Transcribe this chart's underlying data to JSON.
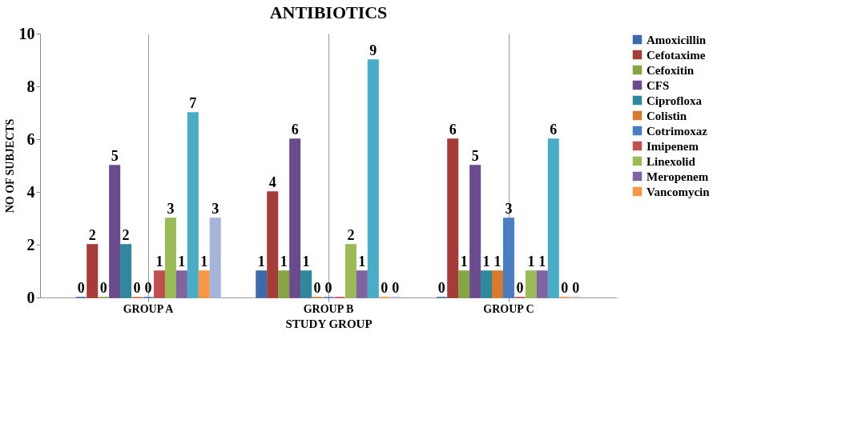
{
  "chart_data": {
    "type": "bar",
    "title": "ANTIBIOTICS",
    "xlabel": "STUDY GROUP",
    "ylabel": "NO OF SUBJECTS",
    "categories": [
      "GROUP A",
      "GROUP B",
      "GROUP C"
    ],
    "ylim": [
      0,
      10
    ],
    "yticks": [
      0,
      2,
      4,
      6,
      8,
      10
    ],
    "legend": "top right",
    "grid": "x",
    "data_labels": true,
    "series": [
      {
        "name": "Amoxicillin",
        "color": "#3d6aa8",
        "values": [
          0,
          1,
          0
        ]
      },
      {
        "name": "Cefotaxime",
        "color": "#a63c3a",
        "values": [
          2,
          4,
          6
        ]
      },
      {
        "name": "Cefoxitin",
        "color": "#86a443",
        "values": [
          0,
          1,
          1
        ]
      },
      {
        "name": "CFS",
        "color": "#6a4c8c",
        "values": [
          5,
          6,
          5
        ]
      },
      {
        "name": "Ciprofloxa",
        "color": "#31879c",
        "values": [
          2,
          1,
          1
        ]
      },
      {
        "name": "Colistin",
        "color": "#d57a2e",
        "values": [
          0,
          0,
          1
        ]
      },
      {
        "name": "Cotrimoxaz",
        "color": "#4a7ec0",
        "values": [
          0,
          0,
          3
        ]
      },
      {
        "name": "Imipenem",
        "color": "#c0504d",
        "values": [
          1,
          0,
          0
        ],
        "value_labels": [
          "1",
          null,
          "0"
        ]
      },
      {
        "name": "Linexolid",
        "color": "#9bbb59",
        "values": [
          3,
          2,
          1
        ]
      },
      {
        "name": "Meropenem",
        "color": "#8064a2",
        "values": [
          1,
          1,
          1
        ]
      },
      {
        "color": "#4bacc6",
        "values": [
          7,
          9,
          6
        ]
      },
      {
        "name": "Vancomycin",
        "color": "#f79646",
        "values": [
          1,
          0,
          0
        ]
      },
      {
        "color": "#a5b4d8",
        "values": [
          3,
          0,
          0
        ]
      }
    ]
  }
}
